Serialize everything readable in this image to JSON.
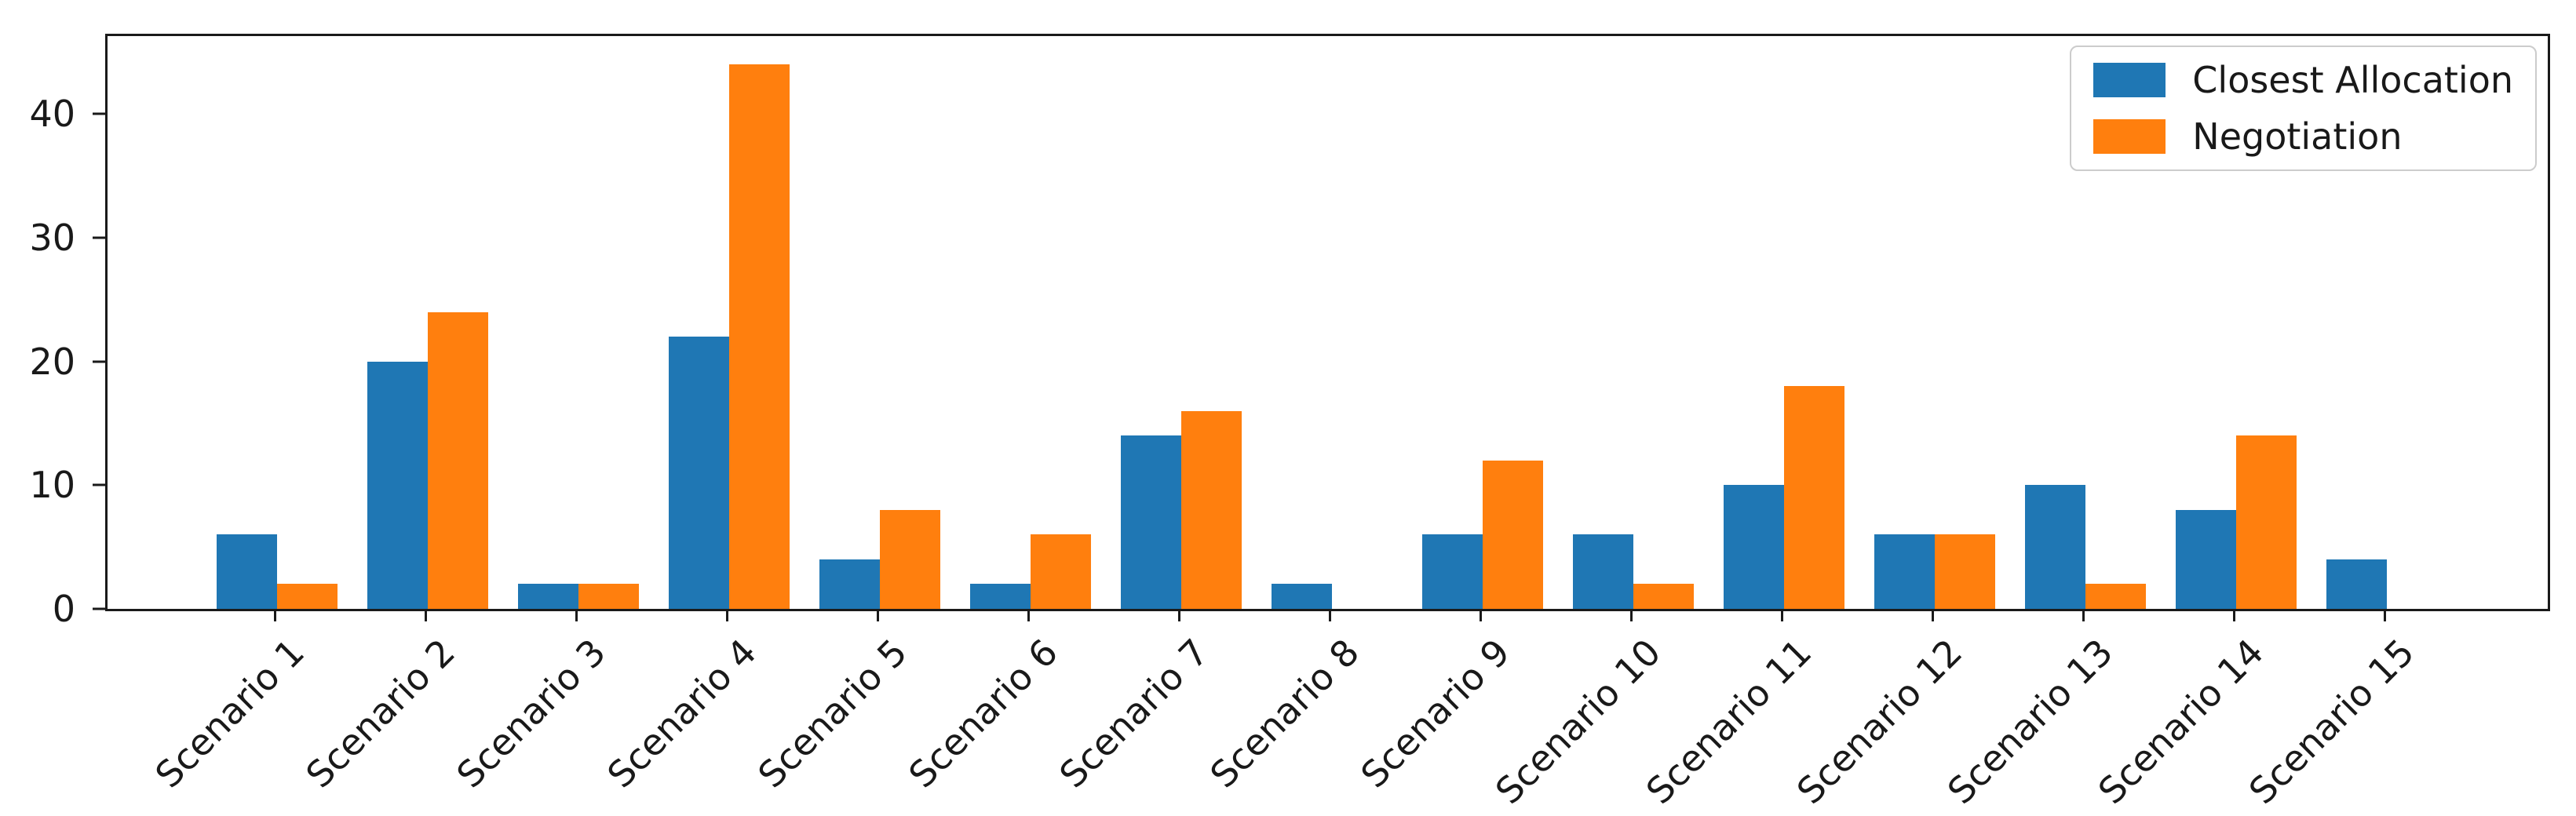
{
  "chart_data": {
    "type": "bar",
    "title": "",
    "xlabel": "",
    "ylabel": "",
    "categories": [
      "Scenario 1",
      "Scenario 2",
      "Scenario 3",
      "Scenario 4",
      "Scenario 5",
      "Scenario 6",
      "Scenario 7",
      "Scenario 8",
      "Scenario 9",
      "Scenario 10",
      "Scenario 11",
      "Scenario 12",
      "Scenario 13",
      "Scenario 14",
      "Scenario 15"
    ],
    "series": [
      {
        "name": "Closest Allocation",
        "color": "#1f77b4",
        "values": [
          6,
          20,
          2,
          22,
          4,
          2,
          14,
          2,
          6,
          6,
          10,
          6,
          10,
          8,
          4
        ]
      },
      {
        "name": "Negotiation",
        "color": "#ff7f0e",
        "values": [
          2,
          24,
          2,
          44,
          8,
          6,
          16,
          0,
          12,
          2,
          18,
          6,
          2,
          14,
          0
        ]
      }
    ],
    "yticks": [
      0,
      10,
      20,
      30,
      40
    ],
    "ylim": [
      0,
      46.3
    ],
    "grid": false,
    "legend_position": "upper right",
    "x_tick_label_rotation_deg": 45
  }
}
